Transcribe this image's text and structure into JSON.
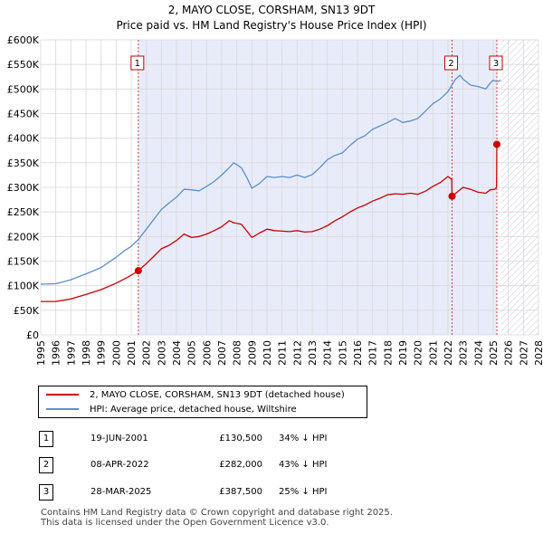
{
  "chart_data": {
    "type": "line",
    "title": "2, MAYO CLOSE, CORSHAM, SN13 9DT",
    "subtitle": "Price paid vs. HM Land Registry's House Price Index (HPI)",
    "xlim": [
      1995,
      2028
    ],
    "ylim": [
      0,
      600000
    ],
    "x_ticks": [
      "1995",
      "1996",
      "1997",
      "1998",
      "1999",
      "2000",
      "2001",
      "2002",
      "2003",
      "2004",
      "2005",
      "2006",
      "2007",
      "2008",
      "2009",
      "2010",
      "2011",
      "2012",
      "2013",
      "2014",
      "2015",
      "2016",
      "2017",
      "2018",
      "2019",
      "2020",
      "2021",
      "2022",
      "2023",
      "2024",
      "2025",
      "2026",
      "2027",
      "2028"
    ],
    "y_ticks": [
      {
        "value": 0,
        "label": "£0"
      },
      {
        "value": 50000,
        "label": "£50K"
      },
      {
        "value": 100000,
        "label": "£100K"
      },
      {
        "value": 150000,
        "label": "£150K"
      },
      {
        "value": 200000,
        "label": "£200K"
      },
      {
        "value": 250000,
        "label": "£250K"
      },
      {
        "value": 300000,
        "label": "£300K"
      },
      {
        "value": 350000,
        "label": "£350K"
      },
      {
        "value": 400000,
        "label": "£400K"
      },
      {
        "value": 450000,
        "label": "£450K"
      },
      {
        "value": 500000,
        "label": "£500K"
      },
      {
        "value": 550000,
        "label": "£550K"
      },
      {
        "value": 600000,
        "label": "£600K"
      }
    ],
    "grid": true,
    "ownership_span": [
      2001.47,
      2025.24
    ],
    "future_start": 2025.5,
    "series": [
      {
        "name": "2, MAYO CLOSE, CORSHAM, SN13 9DT (detached house)",
        "color": "#cc0000",
        "points": [
          [
            1995.0,
            68000
          ],
          [
            1996.0,
            68000
          ],
          [
            1997.0,
            73000
          ],
          [
            1998.0,
            82000
          ],
          [
            1999.0,
            92000
          ],
          [
            2000.0,
            105000
          ],
          [
            2000.8,
            118000
          ],
          [
            2001.3,
            127000
          ],
          [
            2001.47,
            130500
          ],
          [
            2002.0,
            145000
          ],
          [
            2002.5,
            160000
          ],
          [
            2003.0,
            175000
          ],
          [
            2003.5,
            182000
          ],
          [
            2004.0,
            192000
          ],
          [
            2004.5,
            205000
          ],
          [
            2005.0,
            198000
          ],
          [
            2005.5,
            200000
          ],
          [
            2006.0,
            205000
          ],
          [
            2006.5,
            212000
          ],
          [
            2007.0,
            220000
          ],
          [
            2007.5,
            232000
          ],
          [
            2007.8,
            228000
          ],
          [
            2008.3,
            225000
          ],
          [
            2008.7,
            210000
          ],
          [
            2009.0,
            198000
          ],
          [
            2009.5,
            207000
          ],
          [
            2010.0,
            215000
          ],
          [
            2010.5,
            212000
          ],
          [
            2011.0,
            211000
          ],
          [
            2011.5,
            210000
          ],
          [
            2012.0,
            212000
          ],
          [
            2012.5,
            209000
          ],
          [
            2013.0,
            210000
          ],
          [
            2013.5,
            215000
          ],
          [
            2014.0,
            222000
          ],
          [
            2014.5,
            232000
          ],
          [
            2015.0,
            240000
          ],
          [
            2015.5,
            250000
          ],
          [
            2016.0,
            258000
          ],
          [
            2016.5,
            264000
          ],
          [
            2017.0,
            272000
          ],
          [
            2017.5,
            278000
          ],
          [
            2018.0,
            285000
          ],
          [
            2018.5,
            287000
          ],
          [
            2019.0,
            286000
          ],
          [
            2019.5,
            288000
          ],
          [
            2020.0,
            286000
          ],
          [
            2020.5,
            292000
          ],
          [
            2021.0,
            302000
          ],
          [
            2021.5,
            310000
          ],
          [
            2022.0,
            322000
          ],
          [
            2022.25,
            316000
          ],
          [
            2022.27,
            282000
          ],
          [
            2022.6,
            290000
          ],
          [
            2023.0,
            300000
          ],
          [
            2023.5,
            296000
          ],
          [
            2024.0,
            290000
          ],
          [
            2024.5,
            288000
          ],
          [
            2024.8,
            295000
          ],
          [
            2025.1,
            296000
          ],
          [
            2025.22,
            300000
          ],
          [
            2025.24,
            387500
          ]
        ]
      },
      {
        "name": "HPI: Average price, detached house, Wiltshire",
        "color": "#5b8fd0",
        "points": [
          [
            1995.0,
            103000
          ],
          [
            1996.0,
            104000
          ],
          [
            1997.0,
            112000
          ],
          [
            1998.0,
            124000
          ],
          [
            1999.0,
            137000
          ],
          [
            2000.0,
            158000
          ],
          [
            2000.5,
            170000
          ],
          [
            2001.0,
            180000
          ],
          [
            2001.5,
            195000
          ],
          [
            2002.0,
            215000
          ],
          [
            2002.5,
            235000
          ],
          [
            2003.0,
            255000
          ],
          [
            2003.5,
            268000
          ],
          [
            2004.0,
            280000
          ],
          [
            2004.5,
            296000
          ],
          [
            2005.0,
            295000
          ],
          [
            2005.5,
            293000
          ],
          [
            2006.0,
            302000
          ],
          [
            2006.5,
            312000
          ],
          [
            2007.0,
            325000
          ],
          [
            2007.5,
            340000
          ],
          [
            2007.8,
            350000
          ],
          [
            2008.3,
            340000
          ],
          [
            2008.7,
            318000
          ],
          [
            2009.0,
            298000
          ],
          [
            2009.5,
            308000
          ],
          [
            2010.0,
            322000
          ],
          [
            2010.5,
            320000
          ],
          [
            2011.0,
            322000
          ],
          [
            2011.5,
            320000
          ],
          [
            2012.0,
            325000
          ],
          [
            2012.5,
            320000
          ],
          [
            2013.0,
            326000
          ],
          [
            2013.5,
            340000
          ],
          [
            2014.0,
            356000
          ],
          [
            2014.5,
            365000
          ],
          [
            2015.0,
            370000
          ],
          [
            2015.5,
            385000
          ],
          [
            2016.0,
            398000
          ],
          [
            2016.5,
            405000
          ],
          [
            2017.0,
            418000
          ],
          [
            2017.5,
            425000
          ],
          [
            2018.0,
            432000
          ],
          [
            2018.5,
            440000
          ],
          [
            2019.0,
            432000
          ],
          [
            2019.5,
            435000
          ],
          [
            2020.0,
            440000
          ],
          [
            2020.5,
            455000
          ],
          [
            2021.0,
            470000
          ],
          [
            2021.5,
            480000
          ],
          [
            2022.0,
            495000
          ],
          [
            2022.3,
            510000
          ],
          [
            2022.5,
            520000
          ],
          [
            2022.8,
            528000
          ],
          [
            2023.0,
            520000
          ],
          [
            2023.5,
            508000
          ],
          [
            2024.0,
            505000
          ],
          [
            2024.5,
            500000
          ],
          [
            2024.8,
            512000
          ],
          [
            2025.0,
            518000
          ],
          [
            2025.3,
            515000
          ],
          [
            2025.5,
            518000
          ]
        ]
      }
    ],
    "sales": [
      {
        "label": "1",
        "x": 2001.47,
        "y": 130500
      },
      {
        "label": "2",
        "x": 2022.27,
        "y": 282000
      },
      {
        "label": "3",
        "x": 2025.24,
        "y": 387500
      }
    ]
  },
  "legend": {
    "items": [
      {
        "label": "2, MAYO CLOSE, CORSHAM, SN13 9DT (detached house)",
        "color": "#cc0000"
      },
      {
        "label": "HPI: Average price, detached house, Wiltshire",
        "color": "#5b8fd0"
      }
    ]
  },
  "transactions": [
    {
      "num": "1",
      "date": "19-JUN-2001",
      "price": "£130,500",
      "hpi": "34% ↓ HPI"
    },
    {
      "num": "2",
      "date": "08-APR-2022",
      "price": "£282,000",
      "hpi": "43% ↓ HPI"
    },
    {
      "num": "3",
      "date": "28-MAR-2025",
      "price": "£387,500",
      "hpi": "25% ↓ HPI"
    }
  ],
  "footer": {
    "line1": "Contains HM Land Registry data © Crown copyright and database right 2025.",
    "line2": "This data is licensed under the Open Government Licence v3.0."
  }
}
